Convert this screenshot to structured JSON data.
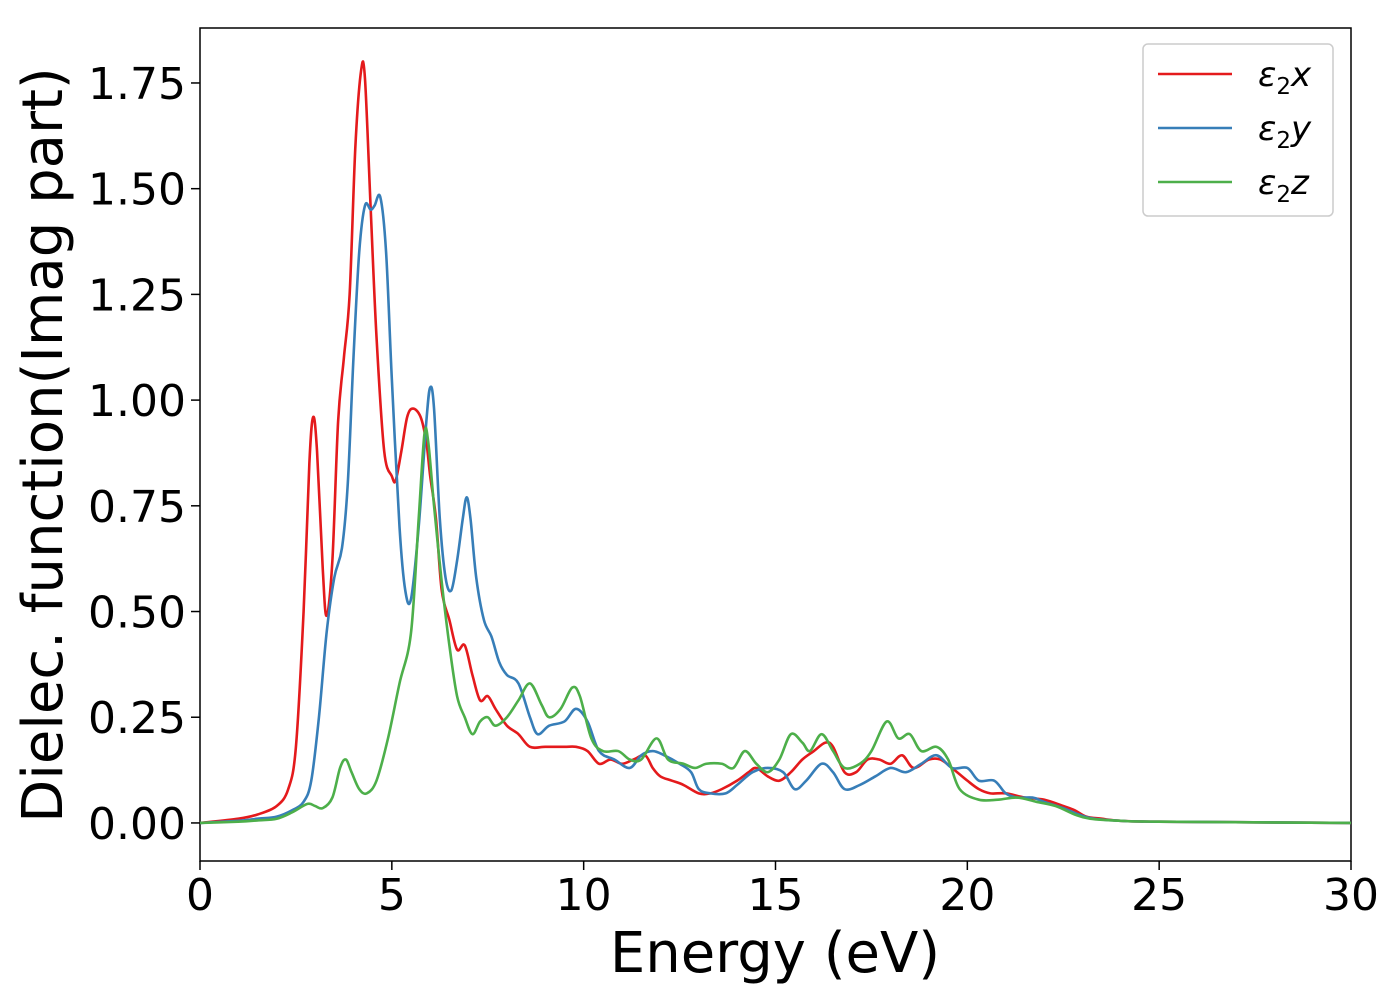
{
  "chart_data": {
    "type": "line",
    "title": "",
    "xlabel": "Energy (eV)",
    "ylabel": "Dielec. function(Imag part)",
    "xlim": [
      0,
      30
    ],
    "ylim": [
      -0.09,
      1.88
    ],
    "x_ticks": [
      "0",
      "5",
      "10",
      "15",
      "20",
      "25",
      "30"
    ],
    "y_ticks": [
      "0.00",
      "0.25",
      "0.50",
      "0.75",
      "1.00",
      "1.25",
      "1.50",
      "1.75"
    ],
    "grid": false,
    "legend_position": "top-right",
    "legend": [
      {
        "sym": "ε",
        "sub": "2",
        "axis": "x"
      },
      {
        "sym": "ε",
        "sub": "2",
        "axis": "y"
      },
      {
        "sym": "ε",
        "sub": "2",
        "axis": "z"
      }
    ],
    "series": [
      {
        "name": "ε2x",
        "color": "#e41a1c",
        "points": [
          [
            0,
            0
          ],
          [
            1,
            0.01
          ],
          [
            1.5,
            0.02
          ],
          [
            2,
            0.04
          ],
          [
            2.3,
            0.08
          ],
          [
            2.5,
            0.18
          ],
          [
            2.7,
            0.5
          ],
          [
            2.85,
            0.85
          ],
          [
            2.95,
            0.96
          ],
          [
            3.05,
            0.88
          ],
          [
            3.2,
            0.6
          ],
          [
            3.3,
            0.49
          ],
          [
            3.45,
            0.62
          ],
          [
            3.6,
            0.95
          ],
          [
            3.75,
            1.1
          ],
          [
            3.9,
            1.25
          ],
          [
            4.05,
            1.6
          ],
          [
            4.2,
            1.78
          ],
          [
            4.3,
            1.76
          ],
          [
            4.45,
            1.45
          ],
          [
            4.6,
            1.15
          ],
          [
            4.8,
            0.88
          ],
          [
            5.0,
            0.82
          ],
          [
            5.1,
            0.81
          ],
          [
            5.25,
            0.88
          ],
          [
            5.4,
            0.96
          ],
          [
            5.55,
            0.98
          ],
          [
            5.75,
            0.96
          ],
          [
            5.9,
            0.9
          ],
          [
            6.0,
            0.82
          ],
          [
            6.15,
            0.72
          ],
          [
            6.3,
            0.55
          ],
          [
            6.5,
            0.48
          ],
          [
            6.7,
            0.41
          ],
          [
            6.9,
            0.42
          ],
          [
            7.1,
            0.35
          ],
          [
            7.3,
            0.29
          ],
          [
            7.5,
            0.3
          ],
          [
            7.7,
            0.27
          ],
          [
            8.0,
            0.23
          ],
          [
            8.3,
            0.21
          ],
          [
            8.6,
            0.18
          ],
          [
            9.0,
            0.18
          ],
          [
            9.5,
            0.18
          ],
          [
            9.8,
            0.18
          ],
          [
            10.1,
            0.17
          ],
          [
            10.4,
            0.14
          ],
          [
            10.7,
            0.15
          ],
          [
            11.0,
            0.14
          ],
          [
            11.3,
            0.15
          ],
          [
            11.6,
            0.16
          ],
          [
            11.8,
            0.13
          ],
          [
            12.0,
            0.11
          ],
          [
            12.3,
            0.1
          ],
          [
            12.6,
            0.09
          ],
          [
            13.0,
            0.07
          ],
          [
            13.3,
            0.07
          ],
          [
            13.6,
            0.08
          ],
          [
            14.0,
            0.1
          ],
          [
            14.3,
            0.12
          ],
          [
            14.5,
            0.13
          ],
          [
            14.8,
            0.11
          ],
          [
            15.1,
            0.1
          ],
          [
            15.4,
            0.12
          ],
          [
            15.7,
            0.15
          ],
          [
            16.0,
            0.17
          ],
          [
            16.3,
            0.19
          ],
          [
            16.5,
            0.18
          ],
          [
            16.8,
            0.12
          ],
          [
            17.1,
            0.12
          ],
          [
            17.4,
            0.15
          ],
          [
            17.7,
            0.15
          ],
          [
            18.0,
            0.14
          ],
          [
            18.3,
            0.16
          ],
          [
            18.6,
            0.13
          ],
          [
            19.0,
            0.15
          ],
          [
            19.3,
            0.15
          ],
          [
            19.6,
            0.13
          ],
          [
            20.0,
            0.1
          ],
          [
            20.3,
            0.08
          ],
          [
            20.6,
            0.07
          ],
          [
            21.0,
            0.07
          ],
          [
            21.5,
            0.06
          ],
          [
            22.0,
            0.055
          ],
          [
            22.5,
            0.04
          ],
          [
            22.8,
            0.03
          ],
          [
            23.1,
            0.015
          ],
          [
            23.5,
            0.01
          ],
          [
            24.0,
            0.005
          ],
          [
            25,
            0.003
          ],
          [
            30,
            0
          ]
        ]
      },
      {
        "name": "ε2y",
        "color": "#377eb8",
        "points": [
          [
            0,
            0
          ],
          [
            1,
            0.005
          ],
          [
            1.5,
            0.01
          ],
          [
            2,
            0.015
          ],
          [
            2.4,
            0.03
          ],
          [
            2.7,
            0.05
          ],
          [
            2.9,
            0.1
          ],
          [
            3.1,
            0.25
          ],
          [
            3.3,
            0.45
          ],
          [
            3.5,
            0.58
          ],
          [
            3.7,
            0.65
          ],
          [
            3.85,
            0.8
          ],
          [
            4.0,
            1.1
          ],
          [
            4.15,
            1.35
          ],
          [
            4.3,
            1.46
          ],
          [
            4.45,
            1.45
          ],
          [
            4.55,
            1.46
          ],
          [
            4.7,
            1.48
          ],
          [
            4.85,
            1.35
          ],
          [
            5.0,
            1.05
          ],
          [
            5.2,
            0.7
          ],
          [
            5.35,
            0.55
          ],
          [
            5.5,
            0.53
          ],
          [
            5.7,
            0.7
          ],
          [
            5.9,
            0.95
          ],
          [
            6.0,
            1.03
          ],
          [
            6.1,
            0.98
          ],
          [
            6.25,
            0.72
          ],
          [
            6.4,
            0.58
          ],
          [
            6.55,
            0.55
          ],
          [
            6.7,
            0.62
          ],
          [
            6.85,
            0.72
          ],
          [
            6.95,
            0.77
          ],
          [
            7.05,
            0.72
          ],
          [
            7.2,
            0.58
          ],
          [
            7.4,
            0.48
          ],
          [
            7.6,
            0.44
          ],
          [
            7.8,
            0.38
          ],
          [
            8.0,
            0.35
          ],
          [
            8.3,
            0.33
          ],
          [
            8.6,
            0.25
          ],
          [
            8.8,
            0.21
          ],
          [
            9.1,
            0.23
          ],
          [
            9.5,
            0.24
          ],
          [
            9.8,
            0.27
          ],
          [
            10.1,
            0.24
          ],
          [
            10.4,
            0.17
          ],
          [
            10.8,
            0.15
          ],
          [
            11.2,
            0.13
          ],
          [
            11.5,
            0.16
          ],
          [
            11.8,
            0.17
          ],
          [
            12.1,
            0.16
          ],
          [
            12.5,
            0.14
          ],
          [
            12.8,
            0.12
          ],
          [
            13.0,
            0.08
          ],
          [
            13.3,
            0.07
          ],
          [
            13.7,
            0.07
          ],
          [
            14.0,
            0.09
          ],
          [
            14.4,
            0.12
          ],
          [
            14.8,
            0.13
          ],
          [
            15.2,
            0.12
          ],
          [
            15.5,
            0.08
          ],
          [
            15.8,
            0.1
          ],
          [
            16.2,
            0.14
          ],
          [
            16.5,
            0.12
          ],
          [
            16.8,
            0.08
          ],
          [
            17.2,
            0.09
          ],
          [
            17.6,
            0.11
          ],
          [
            18.0,
            0.13
          ],
          [
            18.4,
            0.12
          ],
          [
            18.8,
            0.14
          ],
          [
            19.2,
            0.16
          ],
          [
            19.6,
            0.13
          ],
          [
            20.0,
            0.13
          ],
          [
            20.3,
            0.1
          ],
          [
            20.7,
            0.1
          ],
          [
            21.0,
            0.07
          ],
          [
            21.3,
            0.06
          ],
          [
            21.7,
            0.06
          ],
          [
            22.0,
            0.05
          ],
          [
            22.5,
            0.035
          ],
          [
            22.9,
            0.02
          ],
          [
            23.3,
            0.01
          ],
          [
            24,
            0.005
          ],
          [
            25,
            0.003
          ],
          [
            30,
            0
          ]
        ]
      },
      {
        "name": "ε2z",
        "color": "#4daf4a",
        "points": [
          [
            0,
            0
          ],
          [
            1,
            0.003
          ],
          [
            1.5,
            0.006
          ],
          [
            2,
            0.01
          ],
          [
            2.4,
            0.025
          ],
          [
            2.8,
            0.045
          ],
          [
            3.0,
            0.04
          ],
          [
            3.2,
            0.035
          ],
          [
            3.45,
            0.06
          ],
          [
            3.65,
            0.13
          ],
          [
            3.8,
            0.15
          ],
          [
            3.95,
            0.12
          ],
          [
            4.15,
            0.08
          ],
          [
            4.35,
            0.07
          ],
          [
            4.6,
            0.1
          ],
          [
            4.9,
            0.2
          ],
          [
            5.2,
            0.33
          ],
          [
            5.5,
            0.45
          ],
          [
            5.7,
            0.72
          ],
          [
            5.85,
            0.92
          ],
          [
            5.95,
            0.9
          ],
          [
            6.1,
            0.75
          ],
          [
            6.3,
            0.57
          ],
          [
            6.5,
            0.42
          ],
          [
            6.7,
            0.3
          ],
          [
            6.9,
            0.25
          ],
          [
            7.1,
            0.21
          ],
          [
            7.3,
            0.24
          ],
          [
            7.5,
            0.25
          ],
          [
            7.7,
            0.23
          ],
          [
            8.0,
            0.25
          ],
          [
            8.3,
            0.29
          ],
          [
            8.6,
            0.33
          ],
          [
            8.9,
            0.28
          ],
          [
            9.1,
            0.25
          ],
          [
            9.4,
            0.27
          ],
          [
            9.7,
            0.32
          ],
          [
            9.9,
            0.3
          ],
          [
            10.2,
            0.2
          ],
          [
            10.5,
            0.17
          ],
          [
            10.9,
            0.17
          ],
          [
            11.2,
            0.15
          ],
          [
            11.5,
            0.15
          ],
          [
            11.9,
            0.2
          ],
          [
            12.2,
            0.15
          ],
          [
            12.6,
            0.14
          ],
          [
            12.9,
            0.13
          ],
          [
            13.2,
            0.14
          ],
          [
            13.6,
            0.14
          ],
          [
            13.9,
            0.13
          ],
          [
            14.2,
            0.17
          ],
          [
            14.5,
            0.14
          ],
          [
            14.8,
            0.12
          ],
          [
            15.1,
            0.15
          ],
          [
            15.4,
            0.21
          ],
          [
            15.7,
            0.19
          ],
          [
            15.9,
            0.17
          ],
          [
            16.2,
            0.21
          ],
          [
            16.5,
            0.17
          ],
          [
            16.8,
            0.13
          ],
          [
            17.2,
            0.14
          ],
          [
            17.5,
            0.17
          ],
          [
            17.9,
            0.24
          ],
          [
            18.2,
            0.2
          ],
          [
            18.5,
            0.21
          ],
          [
            18.8,
            0.17
          ],
          [
            19.2,
            0.18
          ],
          [
            19.5,
            0.15
          ],
          [
            19.8,
            0.08
          ],
          [
            20.3,
            0.055
          ],
          [
            20.8,
            0.055
          ],
          [
            21.3,
            0.06
          ],
          [
            21.8,
            0.05
          ],
          [
            22.3,
            0.04
          ],
          [
            22.8,
            0.02
          ],
          [
            23.2,
            0.01
          ],
          [
            24,
            0.005
          ],
          [
            25,
            0.003
          ],
          [
            30,
            0
          ]
        ]
      }
    ]
  }
}
